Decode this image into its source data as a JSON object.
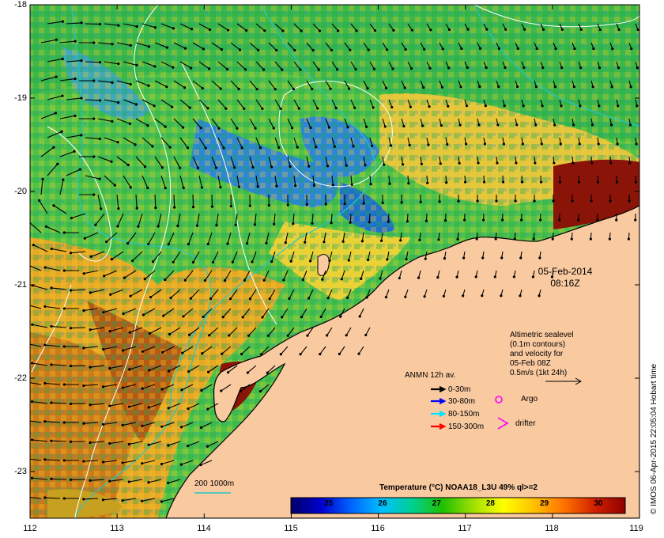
{
  "map": {
    "lat_ticks": [
      "-18",
      "-19",
      "-20",
      "-21",
      "-22",
      "-23"
    ],
    "lon_ticks": [
      "112",
      "113",
      "114",
      "115",
      "116",
      "117",
      "118",
      "119"
    ],
    "lat_range": [
      -23.5,
      -18
    ],
    "lon_range": [
      112,
      119
    ],
    "colors": {
      "land": "#f9c9a0",
      "coast": "#000000",
      "bathy_200": "#26c6c6",
      "sealevel_contour": "#ffffff",
      "arrow": "#000000"
    }
  },
  "date_label": {
    "line1": "05-Feb-2014",
    "line2": "08:16Z"
  },
  "altimetry_note": {
    "line1": "Altimetric sealevel",
    "line2": "(0.1m contours)",
    "line3": "and velocity for",
    "line4": "05-Feb 08Z",
    "line5": "0.5m/s (1kt 24h)"
  },
  "legend": {
    "title": "ANMN 12h av.",
    "items": [
      {
        "label": "0-30m",
        "color": "#000000"
      },
      {
        "label": "30-80m",
        "color": "#0000ff"
      },
      {
        "label": "80-150m",
        "color": "#00e5ff"
      },
      {
        "label": "150-300m",
        "color": "#ff0000"
      }
    ],
    "argo_label": "Argo",
    "drifter_label": "drifter",
    "argo_color": "#ff00ff",
    "drifter_color": "#ff00ff"
  },
  "bathy_legend": {
    "label": "200  1000m"
  },
  "colorbar": {
    "title": "Temperature (°C) NOAA18_L3U 49% ql>=2",
    "ticks": [
      "25",
      "26",
      "27",
      "28",
      "29",
      "30"
    ],
    "range": [
      24.3,
      30.5
    ],
    "stops": [
      "#000066",
      "#0000d0",
      "#0066ff",
      "#00c0ff",
      "#00d090",
      "#20c000",
      "#a0e000",
      "#ffff00",
      "#ffc000",
      "#ff7000",
      "#d02000",
      "#900000"
    ]
  },
  "credit": "© IMOS 06-Apr-2015 22:05:04 Hobart time"
}
